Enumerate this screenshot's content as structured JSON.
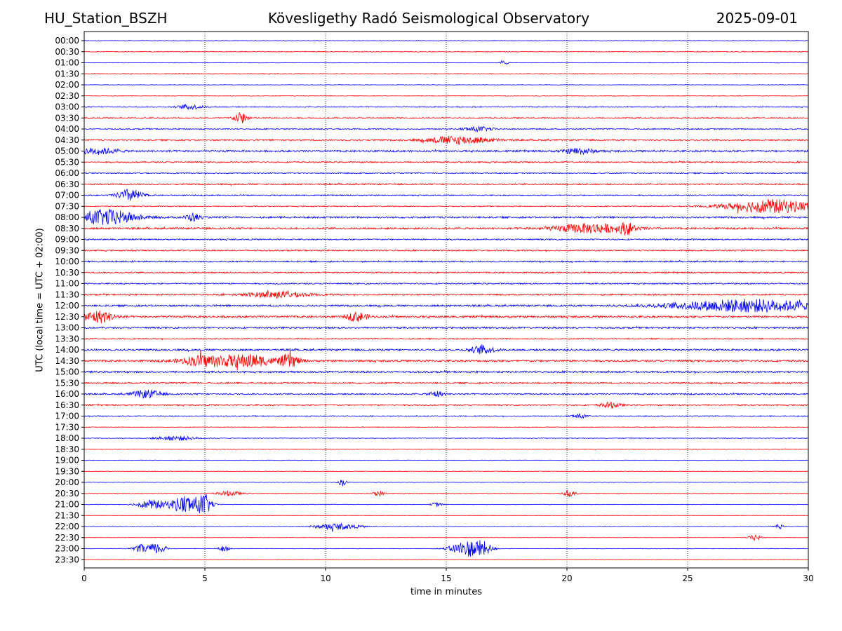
{
  "header": {
    "station": "HU_Station_BSZH",
    "title": "Kövesligethy Radó Seismological Observatory",
    "date": "2025-09-01"
  },
  "colors": {
    "even_rows": "#0000ff",
    "odd_rows": "#ff0000",
    "axes": "#000000"
  },
  "chart_data": {
    "type": "line",
    "title": "Kövesligethy Radó Seismological Observatory",
    "xlabel": "time in minutes",
    "ylabel": "UTC (local time = UTC + 02:00)",
    "xlim": [
      0,
      30
    ],
    "x_ticks": [
      "0",
      "5",
      "10",
      "15",
      "20",
      "25",
      "30"
    ],
    "grid": "vertical dotted at 5-minute ticks",
    "row_labels": [
      "00:00",
      "00:30",
      "01:00",
      "01:30",
      "02:00",
      "02:30",
      "03:00",
      "03:30",
      "04:00",
      "04:30",
      "05:00",
      "05:30",
      "06:00",
      "06:30",
      "07:00",
      "07:30",
      "08:00",
      "08:30",
      "09:00",
      "09:30",
      "10:00",
      "10:30",
      "11:00",
      "11:30",
      "12:00",
      "12:30",
      "13:00",
      "13:30",
      "14:00",
      "14:30",
      "15:00",
      "15:30",
      "16:00",
      "16:30",
      "17:00",
      "17:30",
      "18:00",
      "18:30",
      "19:00",
      "19:30",
      "20:00",
      "20:30",
      "21:00",
      "21:30",
      "22:00",
      "22:30",
      "23:00",
      "23:30"
    ],
    "row_noise": [
      0.15,
      0.25,
      0.15,
      0.25,
      0.15,
      0.2,
      0.3,
      0.35,
      0.35,
      0.45,
      0.55,
      0.4,
      0.35,
      0.45,
      0.35,
      0.3,
      0.55,
      0.55,
      0.4,
      0.4,
      0.45,
      0.4,
      0.4,
      0.45,
      0.55,
      0.6,
      0.5,
      0.35,
      0.55,
      0.6,
      0.55,
      0.45,
      0.45,
      0.4,
      0.3,
      0.2,
      0.2,
      0.2,
      0.15,
      0.15,
      0.1,
      0.15,
      0.15,
      0.1,
      0.15,
      0.1,
      0.15,
      0.1
    ],
    "events": [
      {
        "row": "01:00",
        "t": 17.4,
        "amp": 1.5,
        "dur": 0.15
      },
      {
        "row": "03:00",
        "t": 4.4,
        "amp": 1.5,
        "dur": 0.5
      },
      {
        "row": "03:30",
        "t": 6.5,
        "amp": 3.5,
        "dur": 0.3
      },
      {
        "row": "04:00",
        "t": 16.3,
        "amp": 1.5,
        "dur": 0.6
      },
      {
        "row": "04:30",
        "t": 15.5,
        "amp": 2.5,
        "dur": 1.3
      },
      {
        "row": "05:00",
        "t": 0.5,
        "amp": 2,
        "dur": 0.8
      },
      {
        "row": "05:00",
        "t": 20.5,
        "amp": 2,
        "dur": 0.6
      },
      {
        "row": "07:00",
        "t": 1.9,
        "amp": 4,
        "dur": 0.5
      },
      {
        "row": "07:30",
        "t": 28.5,
        "amp": 4.5,
        "dur": 1.8
      },
      {
        "row": "08:00",
        "t": 0.9,
        "amp": 5,
        "dur": 1.2
      },
      {
        "row": "08:00",
        "t": 4.5,
        "amp": 2.5,
        "dur": 0.3
      },
      {
        "row": "08:30",
        "t": 21,
        "amp": 3,
        "dur": 1.5
      },
      {
        "row": "08:30",
        "t": 22.5,
        "amp": 3,
        "dur": 0.3
      },
      {
        "row": "11:30",
        "t": 8,
        "amp": 2,
        "dur": 1.2
      },
      {
        "row": "12:00",
        "t": 27.5,
        "amp": 4,
        "dur": 3
      },
      {
        "row": "12:30",
        "t": 0.6,
        "amp": 4,
        "dur": 0.6
      },
      {
        "row": "12:30",
        "t": 11.3,
        "amp": 3,
        "dur": 0.4
      },
      {
        "row": "14:00",
        "t": 16.5,
        "amp": 2.5,
        "dur": 0.5
      },
      {
        "row": "14:30",
        "t": 5,
        "amp": 3.5,
        "dur": 1
      },
      {
        "row": "14:30",
        "t": 6.8,
        "amp": 4,
        "dur": 1
      },
      {
        "row": "14:30",
        "t": 8.5,
        "amp": 4,
        "dur": 0.4
      },
      {
        "row": "16:00",
        "t": 2.6,
        "amp": 2.5,
        "dur": 0.6
      },
      {
        "row": "16:00",
        "t": 14.6,
        "amp": 2,
        "dur": 0.3
      },
      {
        "row": "16:30",
        "t": 21.8,
        "amp": 1.8,
        "dur": 0.4
      },
      {
        "row": "17:00",
        "t": 20.5,
        "amp": 1.5,
        "dur": 0.3
      },
      {
        "row": "18:00",
        "t": 3.8,
        "amp": 1.5,
        "dur": 0.8
      },
      {
        "row": "20:00",
        "t": 10.7,
        "amp": 2.5,
        "dur": 0.15
      },
      {
        "row": "20:30",
        "t": 6,
        "amp": 1.5,
        "dur": 0.5
      },
      {
        "row": "20:30",
        "t": 12.2,
        "amp": 2,
        "dur": 0.2
      },
      {
        "row": "20:30",
        "t": 20.1,
        "amp": 2,
        "dur": 0.25
      },
      {
        "row": "21:00",
        "t": 2.8,
        "amp": 3,
        "dur": 0.6
      },
      {
        "row": "21:00",
        "t": 4.2,
        "amp": 6,
        "dur": 0.6
      },
      {
        "row": "21:00",
        "t": 5,
        "amp": 6,
        "dur": 0.3
      },
      {
        "row": "21:00",
        "t": 14.6,
        "amp": 1.5,
        "dur": 0.2
      },
      {
        "row": "22:00",
        "t": 10.5,
        "amp": 2,
        "dur": 0.9
      },
      {
        "row": "22:00",
        "t": 28.8,
        "amp": 1.5,
        "dur": 0.15
      },
      {
        "row": "22:30",
        "t": 27.8,
        "amp": 2,
        "dur": 0.25
      },
      {
        "row": "23:00",
        "t": 2.5,
        "amp": 3,
        "dur": 0.4
      },
      {
        "row": "23:00",
        "t": 3.1,
        "amp": 3,
        "dur": 0.3
      },
      {
        "row": "23:00",
        "t": 5.8,
        "amp": 2,
        "dur": 0.2
      },
      {
        "row": "23:00",
        "t": 15.8,
        "amp": 5,
        "dur": 0.6
      },
      {
        "row": "23:00",
        "t": 16.5,
        "amp": 4,
        "dur": 0.4
      }
    ]
  }
}
